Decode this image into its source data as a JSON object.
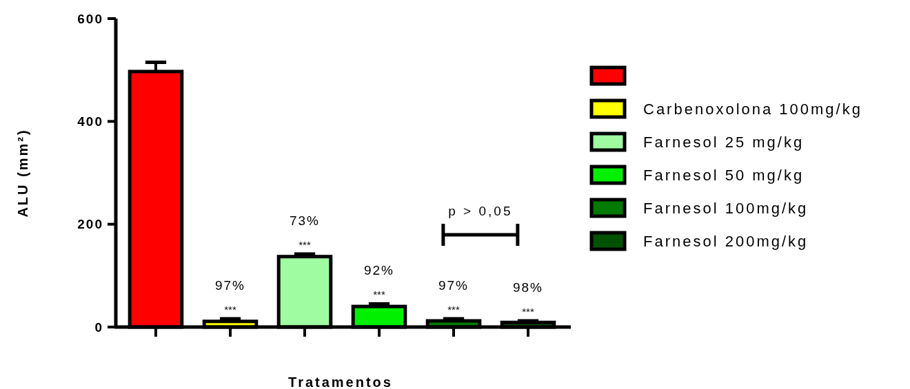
{
  "chart_data": {
    "type": "bar",
    "xlabel": "Tratamentos",
    "ylabel": "ALU (mm²)",
    "categories": [
      null,
      null,
      null,
      null,
      null,
      null
    ],
    "ylim": [
      0,
      600
    ],
    "yticks": [
      0,
      200,
      400,
      600
    ],
    "grid": false,
    "legend": "right",
    "annotations": [
      "97%\n***",
      "73%\n***",
      "92%\n***",
      "97%\n***",
      "98%\n***",
      "p > 0,05"
    ],
    "series": [
      {
        "color": "#ff0000",
        "values": [
          497,
          null,
          null,
          null,
          null,
          null
        ],
        "errors": [
          [
            497,
            515
          ],
          null,
          null,
          null,
          null,
          null
        ]
      },
      {
        "name": "Carbenoxolona 100mg/kg",
        "color": "#ffff00",
        "values": [
          null,
          11,
          null,
          null,
          null,
          null
        ],
        "errors": [
          null,
          [
            11,
            16
          ],
          null,
          null,
          null,
          null
        ]
      },
      {
        "name": "Farnesol 25 mg/kg",
        "color": "#a0fca0",
        "values": [
          null,
          null,
          137,
          null,
          null,
          null
        ],
        "errors": [
          null,
          null,
          [
            137,
            142
          ],
          null,
          null,
          null
        ]
      },
      {
        "name": "Farnesol 50 mg/kg",
        "color": "#00f000",
        "values": [
          null,
          null,
          null,
          40,
          null,
          null
        ],
        "errors": [
          null,
          null,
          null,
          [
            40,
            45
          ],
          null,
          null
        ]
      },
      {
        "name": "Farnesol 100mg/kg",
        "color": "#007a00",
        "values": [
          null,
          null,
          null,
          null,
          12,
          null
        ],
        "errors": [
          null,
          null,
          null,
          null,
          [
            12,
            16
          ],
          null
        ]
      },
      {
        "name": "Farnesol 200mg/kg",
        "color": "#005200",
        "values": [
          null,
          null,
          null,
          null,
          null,
          9
        ],
        "errors": [
          null,
          null,
          null,
          null,
          null,
          [
            9,
            12
          ]
        ]
      }
    ]
  }
}
